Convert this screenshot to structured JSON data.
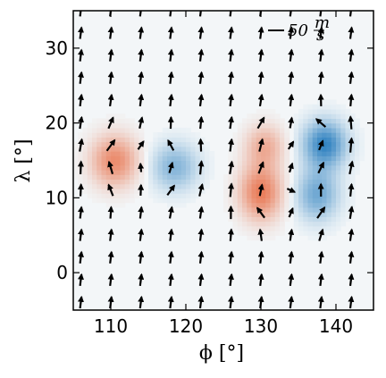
{
  "chart_data": {
    "type": "heatmap",
    "title": "",
    "xlabel": "ϕ [°]",
    "ylabel": "λ [°]",
    "xlim": [
      105,
      145
    ],
    "ylim": [
      -5,
      35
    ],
    "xticks": [
      "110",
      "120",
      "130",
      "140"
    ],
    "yticks": [
      "0",
      "10",
      "20",
      "30"
    ],
    "grid": false,
    "colormap": {
      "positive": "#e8683f",
      "negative": "#2b7fbf",
      "background": "#f2f6f8"
    },
    "field_blobs": [
      {
        "x": 110.5,
        "y": 15.0,
        "sigma_x": 2.2,
        "sigma_y": 2.4,
        "amplitude": 0.75
      },
      {
        "x": 118.5,
        "y": 14.2,
        "sigma_x": 2.2,
        "sigma_y": 2.2,
        "amplitude": -0.55
      },
      {
        "x": 130.0,
        "y": 10.8,
        "sigma_x": 2.0,
        "sigma_y": 2.6,
        "amplitude": 0.85
      },
      {
        "x": 130.5,
        "y": 17.0,
        "sigma_x": 1.8,
        "sigma_y": 2.0,
        "amplitude": 0.5
      },
      {
        "x": 138.5,
        "y": 17.2,
        "sigma_x": 2.0,
        "sigma_y": 2.2,
        "amplitude": -0.95
      },
      {
        "x": 137.5,
        "y": 10.5,
        "sigma_x": 2.0,
        "sigma_y": 2.4,
        "amplitude": -0.65
      }
    ],
    "vector_grid": {
      "x": [
        106,
        110,
        114,
        118,
        122,
        126,
        130,
        134,
        138,
        142,
        146
      ],
      "y": [
        -4,
        -1,
        2,
        5,
        8,
        11,
        14,
        17,
        20,
        23,
        26,
        29,
        32,
        35
      ],
      "reference_vector": {
        "magnitude": 50,
        "unit": "m/s",
        "label": "50"
      }
    },
    "legend": {
      "placement": "top-right",
      "label": "50",
      "unit_numerator": "m",
      "unit_denominator": "s"
    }
  }
}
